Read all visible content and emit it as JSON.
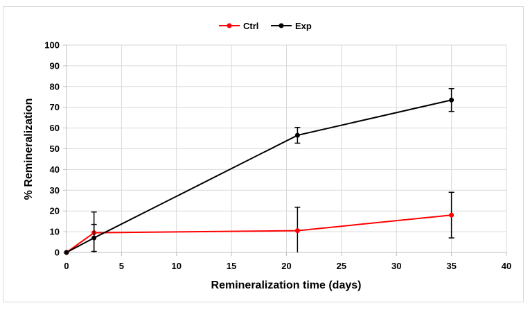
{
  "chart_data": {
    "type": "line",
    "title": "",
    "xlabel": "Remineralization time (days)",
    "ylabel": "% Remineralization",
    "xlim": [
      0,
      40
    ],
    "ylim": [
      0,
      100
    ],
    "xticks": [
      0,
      5,
      10,
      15,
      20,
      25,
      30,
      35,
      40
    ],
    "yticks": [
      0,
      10,
      20,
      30,
      40,
      50,
      60,
      70,
      80,
      90,
      100
    ],
    "grid": true,
    "legend_position": "top-center",
    "series": [
      {
        "name": "Ctrl",
        "color": "#ff0000",
        "x": [
          0,
          2.5,
          21,
          35
        ],
        "y": [
          0,
          9.5,
          10.5,
          18
        ],
        "err": [
          0,
          10,
          11.3,
          11
        ]
      },
      {
        "name": "Exp",
        "color": "#000000",
        "x": [
          0,
          2.5,
          21,
          35
        ],
        "y": [
          0,
          7,
          56.5,
          73.5
        ],
        "err": [
          0,
          6.5,
          3.8,
          5.5
        ]
      }
    ]
  }
}
